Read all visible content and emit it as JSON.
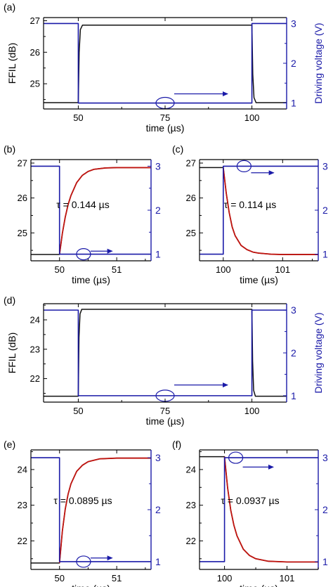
{
  "colors": {
    "measured": "#111111",
    "fit": "#c0140f",
    "drive": "#1a1aa8",
    "axis_left": "#000000",
    "axis_right": "#1a1aa8"
  },
  "chart_data": [
    {
      "type": "line",
      "panel": "(a)",
      "xlabel": "time (µs)",
      "ylabel": "FFIL (dB)",
      "y2label": "Driving voltage (V)",
      "xlim": [
        40,
        110
      ],
      "ylim": [
        24.2,
        27.1
      ],
      "y2lim": [
        0.85,
        3.15
      ],
      "xticks": [
        50,
        75,
        100
      ],
      "yticks": [
        25,
        26,
        27
      ],
      "y2ticks": [
        1,
        2,
        3
      ],
      "series": [
        {
          "role": "measured",
          "axis": "left",
          "x": [
            40,
            50,
            50.25,
            50.6,
            51.2,
            100,
            100.25,
            100.6,
            101.2,
            110
          ],
          "y": [
            24.4,
            24.4,
            26.0,
            26.72,
            26.86,
            26.86,
            25.3,
            24.56,
            24.4,
            24.4
          ]
        },
        {
          "role": "drive",
          "axis": "right",
          "x": [
            40,
            50,
            50,
            100,
            100,
            110
          ],
          "y": [
            3,
            3,
            1,
            1,
            3,
            3
          ]
        }
      ],
      "annotation": {
        "type": "ellipse-arrow",
        "x": 75,
        "y": 1,
        "arrow_to_x": 93,
        "arrow_y": 1.23,
        "points_to": "right-axis"
      }
    },
    {
      "type": "line",
      "panel": "(b)",
      "xlabel": "time (µs)",
      "xlim": [
        49.5,
        51.6
      ],
      "ylim": [
        24.2,
        27.1
      ],
      "y2lim": [
        0.85,
        3.15
      ],
      "xticks": [
        50,
        51
      ],
      "yticks": [
        25,
        26,
        27
      ],
      "y2ticks": [
        1,
        2,
        3
      ],
      "tau_label": "τ = 0.144 µs",
      "series": [
        {
          "role": "measured",
          "axis": "left",
          "x": [
            49.5,
            50,
            50.05,
            50.1,
            50.15,
            50.2,
            50.3,
            50.4,
            50.5,
            50.6,
            50.8,
            51.0,
            51.2,
            51.6
          ],
          "y": [
            24.38,
            24.38,
            24.99,
            25.45,
            25.81,
            26.07,
            26.44,
            26.65,
            26.76,
            26.82,
            26.86,
            26.87,
            26.87,
            26.87
          ]
        },
        {
          "role": "fit",
          "axis": "left",
          "x": [
            50,
            50.05,
            50.1,
            50.15,
            50.2,
            50.3,
            50.4,
            50.5,
            50.6,
            50.8,
            51.0,
            51.2,
            51.6
          ],
          "y": [
            24.38,
            24.99,
            25.45,
            25.81,
            26.07,
            26.44,
            26.65,
            26.76,
            26.82,
            26.86,
            26.87,
            26.87,
            26.87
          ]
        },
        {
          "role": "drive",
          "axis": "right",
          "x": [
            49.5,
            50,
            50,
            51.6
          ],
          "y": [
            3,
            3,
            1,
            1
          ]
        }
      ],
      "annotation": {
        "type": "ellipse-arrow",
        "x": 50.42,
        "y": 1,
        "arrow_to_x": 50.92,
        "arrow_y": 1.07,
        "points_to": "right-axis"
      }
    },
    {
      "type": "line",
      "panel": "(c)",
      "xlabel": "time (µs)",
      "xlim": [
        99.6,
        101.6
      ],
      "ylim": [
        24.2,
        27.1
      ],
      "y2lim": [
        0.85,
        3.15
      ],
      "xticks": [
        100,
        101
      ],
      "yticks": [
        25,
        26,
        27
      ],
      "y2ticks": [
        1,
        2,
        3
      ],
      "tau_label": "τ = 0.114 µs",
      "series": [
        {
          "role": "measured",
          "axis": "left",
          "x": [
            99.6,
            100,
            100.05,
            100.1,
            100.15,
            100.2,
            100.3,
            100.4,
            100.5,
            100.6,
            100.8,
            101.0,
            101.6
          ],
          "y": [
            26.87,
            26.87,
            26.14,
            25.58,
            25.17,
            24.92,
            24.64,
            24.52,
            24.45,
            24.42,
            24.39,
            24.38,
            24.38
          ]
        },
        {
          "role": "fit",
          "axis": "left",
          "x": [
            100,
            100.05,
            100.1,
            100.15,
            100.2,
            100.3,
            100.4,
            100.5,
            100.6,
            100.8,
            101.0,
            101.6
          ],
          "y": [
            26.87,
            26.14,
            25.58,
            25.17,
            24.92,
            24.64,
            24.52,
            24.45,
            24.42,
            24.39,
            24.38,
            24.38
          ]
        },
        {
          "role": "drive",
          "axis": "right",
          "x": [
            99.6,
            100,
            100,
            101.6
          ],
          "y": [
            1,
            1,
            3,
            3
          ]
        }
      ],
      "annotation": {
        "type": "ellipse-arrow",
        "x": 100.35,
        "y": 3,
        "arrow_to_x": 100.85,
        "arrow_y": 2.85,
        "points_to": "right-axis"
      }
    },
    {
      "type": "line",
      "panel": "(d)",
      "xlabel": "time (µs)",
      "ylabel": "FFIL (dB)",
      "y2label": "Driving voltage (V)",
      "xlim": [
        40,
        110
      ],
      "ylim": [
        21.2,
        24.55
      ],
      "y2lim": [
        0.85,
        3.15
      ],
      "xticks": [
        50,
        75,
        100
      ],
      "yticks": [
        22,
        23,
        24
      ],
      "y2ticks": [
        1,
        2,
        3
      ],
      "series": [
        {
          "role": "measured",
          "axis": "left",
          "x": [
            40,
            50,
            50.2,
            50.5,
            51.0,
            100,
            100.2,
            100.5,
            101.0,
            110
          ],
          "y": [
            21.4,
            21.4,
            23.4,
            24.2,
            24.36,
            24.36,
            22.6,
            21.6,
            21.4,
            21.4
          ]
        },
        {
          "role": "drive",
          "axis": "right",
          "x": [
            40,
            50,
            50,
            100,
            100,
            110
          ],
          "y": [
            3,
            3,
            1,
            1,
            3,
            3
          ]
        }
      ],
      "annotation": {
        "type": "ellipse-arrow",
        "x": 75,
        "y": 1,
        "arrow_to_x": 93,
        "arrow_y": 1.25,
        "points_to": "right-axis"
      }
    },
    {
      "type": "line",
      "panel": "(e)",
      "xlabel": "time (µs)",
      "xlim": [
        49.5,
        51.6
      ],
      "ylim": [
        21.2,
        24.55
      ],
      "y2lim": [
        0.85,
        3.15
      ],
      "xticks": [
        50,
        51
      ],
      "yticks": [
        22,
        23,
        24
      ],
      "y2ticks": [
        1,
        2,
        3
      ],
      "tau_label": "τ = 0.0895 µs",
      "series": [
        {
          "role": "measured",
          "axis": "left",
          "x": [
            49.5,
            50,
            50.05,
            50.1,
            50.15,
            50.2,
            50.3,
            50.4,
            50.5,
            50.7,
            51.0,
            51.6
          ],
          "y": [
            21.38,
            21.38,
            22.28,
            22.89,
            23.31,
            23.6,
            23.95,
            24.12,
            24.22,
            24.3,
            24.32,
            24.32
          ]
        },
        {
          "role": "fit",
          "axis": "left",
          "x": [
            50,
            50.05,
            50.1,
            50.15,
            50.2,
            50.3,
            50.4,
            50.5,
            50.7,
            51.0,
            51.6
          ],
          "y": [
            21.38,
            22.28,
            22.89,
            23.31,
            23.6,
            23.95,
            24.12,
            24.22,
            24.3,
            24.32,
            24.32
          ]
        },
        {
          "role": "drive",
          "axis": "right",
          "x": [
            49.5,
            50,
            50,
            51.6
          ],
          "y": [
            3,
            3,
            1,
            1
          ]
        }
      ],
      "annotation": {
        "type": "ellipse-arrow",
        "x": 50.42,
        "y": 1,
        "arrow_to_x": 50.92,
        "arrow_y": 1.07,
        "points_to": "right-axis"
      }
    },
    {
      "type": "line",
      "panel": "(f)",
      "xlabel": "time (µs)",
      "xlim": [
        99.6,
        101.5
      ],
      "ylim": [
        21.2,
        24.55
      ],
      "y2lim": [
        0.85,
        3.15
      ],
      "xticks": [
        100,
        101
      ],
      "yticks": [
        22,
        23,
        24
      ],
      "y2ticks": [
        1,
        2,
        3
      ],
      "tau_label": "τ = 0.0937 µs",
      "series": [
        {
          "role": "measured",
          "axis": "left",
          "x": [
            99.6,
            100,
            100.05,
            100.1,
            100.15,
            100.2,
            100.3,
            100.4,
            100.5,
            100.7,
            101.0,
            101.5
          ],
          "y": [
            24.36,
            24.36,
            23.48,
            22.86,
            22.44,
            22.14,
            21.77,
            21.59,
            21.5,
            21.43,
            21.41,
            21.41
          ]
        },
        {
          "role": "fit",
          "axis": "left",
          "x": [
            100,
            100.05,
            100.1,
            100.15,
            100.2,
            100.3,
            100.4,
            100.5,
            100.7,
            101.0,
            101.5
          ],
          "y": [
            24.36,
            23.48,
            22.86,
            22.44,
            22.14,
            21.77,
            21.59,
            21.5,
            21.43,
            21.41,
            21.41
          ]
        },
        {
          "role": "drive",
          "axis": "right",
          "x": [
            99.6,
            100,
            100,
            101.5
          ],
          "y": [
            1,
            1,
            3,
            3
          ]
        }
      ],
      "annotation": {
        "type": "ellipse-arrow",
        "x": 100.18,
        "y": 3,
        "arrow_to_x": 100.78,
        "arrow_y": 2.82,
        "points_to": "right-axis"
      }
    }
  ]
}
